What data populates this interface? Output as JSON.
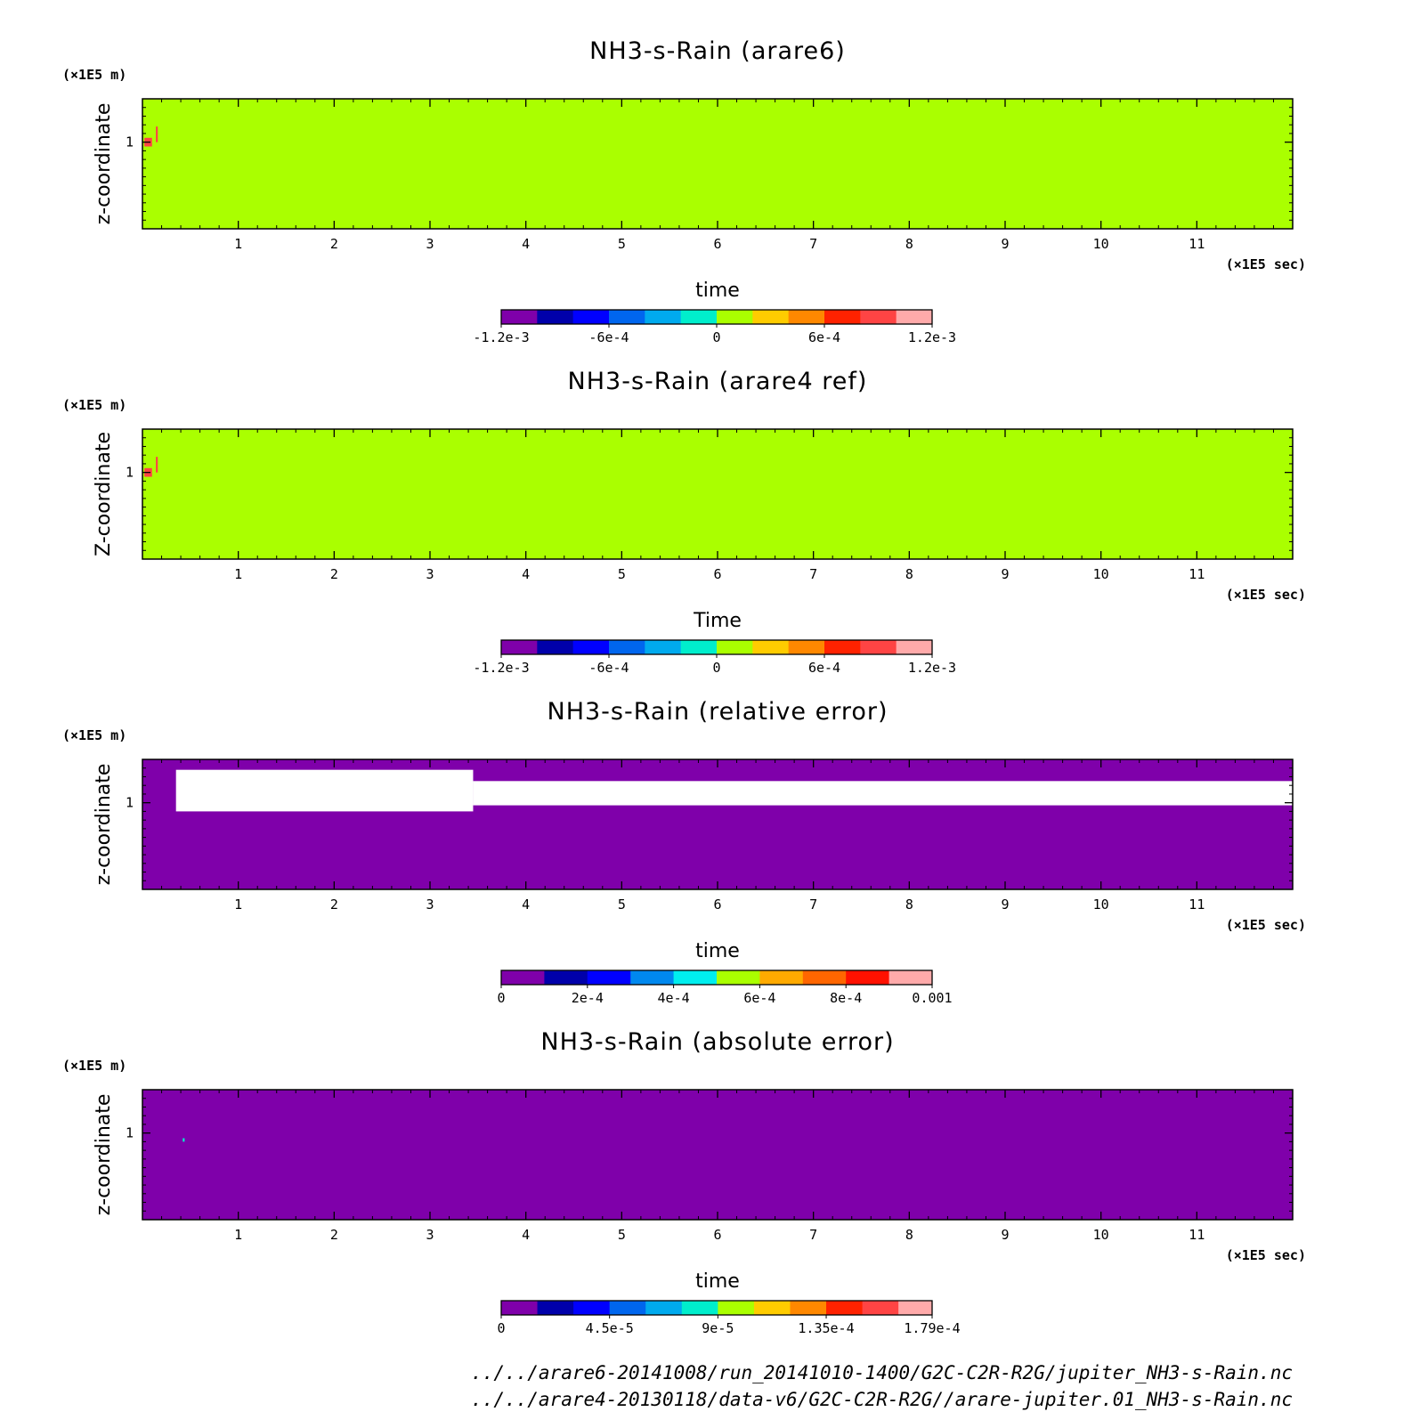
{
  "chart_data": [
    {
      "type": "heatmap",
      "title": "NH3-s-Rain (arare6)",
      "xlabel": "time",
      "ylabel": "z-coordinate",
      "x_unit": "(×1E5 sec)",
      "y_unit": "(×1E5 m)",
      "xlim": [
        0,
        12
      ],
      "ylim": [
        0,
        1.5
      ],
      "xticks": [
        "1",
        "2",
        "3",
        "4",
        "5",
        "6",
        "7",
        "8",
        "9",
        "10",
        "11"
      ],
      "yticks": [
        "1"
      ],
      "colorbar": {
        "levels": [
          -0.0012,
          -0.001,
          -0.0008,
          -0.0006,
          -0.0004,
          -0.0002,
          0,
          0.0002,
          0.0004,
          0.0006,
          0.0008,
          0.001,
          0.0012
        ],
        "tick_labels": [
          "-1.2e-3",
          "-6e-4",
          "0",
          "6e-4",
          "1.2e-3"
        ],
        "colors": [
          "#7f00aa",
          "#0000aa",
          "#0000ff",
          "#0066ee",
          "#00aaee",
          "#00eecc",
          "#aaff00",
          "#ffcc00",
          "#ff8800",
          "#ff2200",
          "#ff4444",
          "#ffaaaa"
        ]
      },
      "field": {
        "background_value": 0.0001,
        "features": [
          {
            "x": [
              0.02,
              0.1
            ],
            "z": [
              0.95,
              1.05
            ],
            "value": 0.0008
          },
          {
            "x": [
              0.14,
              0.16
            ],
            "z": [
              1.0,
              1.18
            ],
            "value": 0.0008
          }
        ]
      }
    },
    {
      "type": "heatmap",
      "title": "NH3-s-Rain (arare4 ref)",
      "xlabel": "Time",
      "ylabel": "Z-coordinate",
      "x_unit": "(×1E5 sec)",
      "y_unit": "(×1E5 m)",
      "xlim": [
        0,
        12
      ],
      "ylim": [
        0,
        1.5
      ],
      "xticks": [
        "1",
        "2",
        "3",
        "4",
        "5",
        "6",
        "7",
        "8",
        "9",
        "10",
        "11"
      ],
      "yticks": [
        "1"
      ],
      "colorbar": {
        "levels": [
          -0.0012,
          -0.001,
          -0.0008,
          -0.0006,
          -0.0004,
          -0.0002,
          0,
          0.0002,
          0.0004,
          0.0006,
          0.0008,
          0.001,
          0.0012
        ],
        "tick_labels": [
          "-1.2e-3",
          "-6e-4",
          "0",
          "6e-4",
          "1.2e-3"
        ],
        "colors": [
          "#7f00aa",
          "#0000aa",
          "#0000ff",
          "#0066ee",
          "#00aaee",
          "#00eecc",
          "#aaff00",
          "#ffcc00",
          "#ff8800",
          "#ff2200",
          "#ff4444",
          "#ffaaaa"
        ]
      },
      "field": {
        "background_value": 0.0001,
        "features": [
          {
            "x": [
              0.02,
              0.1
            ],
            "z": [
              0.95,
              1.05
            ],
            "value": 0.0008
          },
          {
            "x": [
              0.14,
              0.16
            ],
            "z": [
              1.0,
              1.18
            ],
            "value": 0.0008
          }
        ]
      }
    },
    {
      "type": "heatmap",
      "title": "NH3-s-Rain (relative error)",
      "xlabel": "time",
      "ylabel": "z-coordinate",
      "x_unit": "(×1E5 sec)",
      "y_unit": "(×1E5 m)",
      "xlim": [
        0,
        12
      ],
      "ylim": [
        0,
        1.5
      ],
      "xticks": [
        "1",
        "2",
        "3",
        "4",
        "5",
        "6",
        "7",
        "8",
        "9",
        "10",
        "11"
      ],
      "yticks": [
        "1"
      ],
      "colorbar": {
        "levels": [
          0,
          0.0001,
          0.0002,
          0.0003,
          0.0004,
          0.0005,
          0.0006,
          0.0007,
          0.0008,
          0.0009,
          0.001
        ],
        "tick_labels": [
          "0",
          "2e-4",
          "4e-4",
          "6e-4",
          "8e-4",
          "0.001"
        ],
        "colors": [
          "#7f00aa",
          "#0000aa",
          "#0000ff",
          "#0088ee",
          "#00eeee",
          "#aaff00",
          "#ffaa00",
          "#ff6600",
          "#ff1100",
          "#ffaaaa"
        ]
      },
      "field": {
        "background_value": 0,
        "undefined_regions": [
          {
            "x": [
              0.35,
              3.45
            ],
            "z": [
              0.9,
              1.38
            ]
          },
          {
            "x": [
              3.45,
              12.0
            ],
            "z": [
              0.97,
              1.25
            ]
          }
        ]
      }
    },
    {
      "type": "heatmap",
      "title": "NH3-s-Rain (absolute error)",
      "xlabel": "time",
      "ylabel": "z-coordinate",
      "x_unit": "(×1E5 sec)",
      "y_unit": "(×1E5 m)",
      "xlim": [
        0,
        12
      ],
      "ylim": [
        0,
        1.5
      ],
      "xticks": [
        "1",
        "2",
        "3",
        "4",
        "5",
        "6",
        "7",
        "8",
        "9",
        "10",
        "11"
      ],
      "yticks": [
        "1"
      ],
      "colorbar": {
        "levels": [
          0,
          1.5e-05,
          3e-05,
          4.5e-05,
          6e-05,
          7.5e-05,
          9e-05,
          0.000105,
          0.00012,
          0.000135,
          0.00015,
          0.000165,
          0.000179
        ],
        "tick_labels": [
          "0",
          "4.5e-5",
          "9e-5",
          "1.35e-4",
          "1.79e-4"
        ],
        "colors": [
          "#7f00aa",
          "#0000aa",
          "#0000ff",
          "#0066ee",
          "#00aaee",
          "#00eecc",
          "#aaff00",
          "#ffcc00",
          "#ff8800",
          "#ff2200",
          "#ff4444",
          "#ffaaaa"
        ]
      },
      "field": {
        "background_value": 0,
        "features": [
          {
            "x": [
              0.42,
              0.44
            ],
            "z": [
              0.9,
              0.94
            ],
            "value": 8e-05
          }
        ]
      }
    }
  ],
  "footer": {
    "file1": "../../arare6-20141008/run_20141010-1400/G2C-C2R-R2G/jupiter_NH3-s-Rain.nc",
    "file2": "../../arare4-20130118/data-v6/G2C-C2R-R2G//arare-jupiter.01_NH3-s-Rain.nc"
  }
}
